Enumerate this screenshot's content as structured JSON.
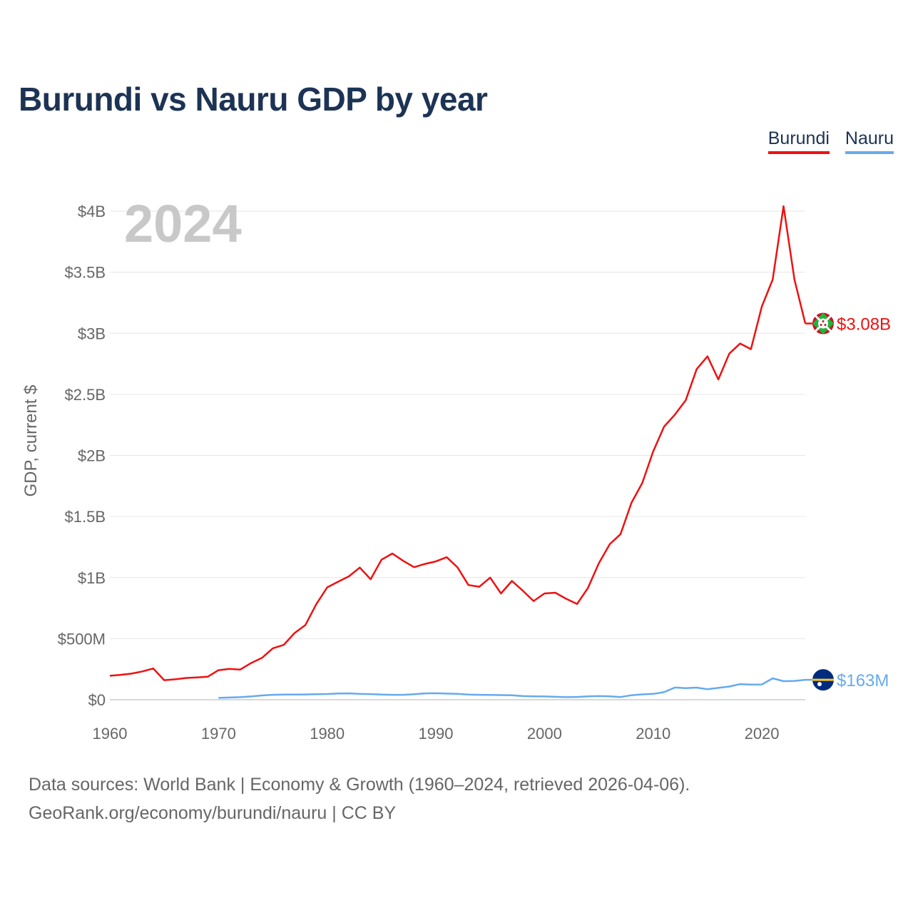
{
  "title": "Burundi vs Nauru GDP by year",
  "legend": [
    {
      "name": "Burundi",
      "color": "#ee1111"
    },
    {
      "name": "Nauru",
      "color": "#66aaee"
    }
  ],
  "footer": {
    "line1": "Data sources: World Bank | Economy & Growth (1960–2024, retrieved 2026-04-06).",
    "line2": "GeoRank.org/economy/burundi/nauru | CC BY"
  },
  "chart_data": {
    "type": "line",
    "title": "Burundi vs Nauru GDP by year",
    "year_watermark": "2024",
    "xlabel": "",
    "ylabel": "GDP, current $",
    "xlim": [
      1960,
      2024
    ],
    "ylim": [
      0,
      4000000000
    ],
    "grid": true,
    "legend_position": "top-right",
    "x_ticks": [
      1960,
      1970,
      1980,
      1990,
      2000,
      2010,
      2020
    ],
    "y_ticks": [
      {
        "value": 0,
        "label": "$0"
      },
      {
        "value": 500000000,
        "label": "$500M"
      },
      {
        "value": 1000000000,
        "label": "$1B"
      },
      {
        "value": 1500000000,
        "label": "$1.5B"
      },
      {
        "value": 2000000000,
        "label": "$2B"
      },
      {
        "value": 2500000000,
        "label": "$2.5B"
      },
      {
        "value": 3000000000,
        "label": "$3B"
      },
      {
        "value": 3500000000,
        "label": "$3.5B"
      },
      {
        "value": 4000000000,
        "label": "$4B"
      }
    ],
    "series": [
      {
        "name": "Burundi",
        "color": "#ee1111",
        "end_label": "$3.08B",
        "x": [
          1960,
          1961,
          1962,
          1963,
          1964,
          1965,
          1966,
          1967,
          1968,
          1969,
          1970,
          1971,
          1972,
          1973,
          1974,
          1975,
          1976,
          1977,
          1978,
          1979,
          1980,
          1981,
          1982,
          1983,
          1984,
          1985,
          1986,
          1987,
          1988,
          1989,
          1990,
          1991,
          1992,
          1993,
          1994,
          1995,
          1996,
          1997,
          1998,
          1999,
          2000,
          2001,
          2002,
          2003,
          2004,
          2005,
          2006,
          2007,
          2008,
          2009,
          2010,
          2011,
          2012,
          2013,
          2014,
          2015,
          2016,
          2017,
          2018,
          2019,
          2020,
          2021,
          2022,
          2023,
          2024
        ],
        "values": [
          196000000,
          204000000,
          214000000,
          232000000,
          256000000,
          160000000,
          167000000,
          178000000,
          183000000,
          188000000,
          242000000,
          252000000,
          247000000,
          300000000,
          343000000,
          421000000,
          449000000,
          546000000,
          612000000,
          783000000,
          920000000,
          966000000,
          1010000000,
          1082000000,
          986000000,
          1146000000,
          1197000000,
          1137000000,
          1085000000,
          1112000000,
          1132000000,
          1167000000,
          1083000000,
          939000000,
          925000000,
          1000000000,
          870000000,
          972000000,
          893000000,
          808000000,
          870000000,
          876000000,
          826000000,
          784000000,
          915000000,
          1117000000,
          1273000000,
          1356000000,
          1612000000,
          1775000000,
          2032000000,
          2236000000,
          2334000000,
          2452000000,
          2706000000,
          2811000000,
          2622000000,
          2833000000,
          2916000000,
          2870000000,
          3220000000,
          3440000000,
          4040000000,
          3440000000,
          3080000000
        ]
      },
      {
        "name": "Nauru",
        "color": "#66aaee",
        "end_label": "$163M",
        "x": [
          1970,
          1971,
          1972,
          1973,
          1974,
          1975,
          1976,
          1977,
          1978,
          1979,
          1980,
          1981,
          1982,
          1983,
          1984,
          1985,
          1986,
          1987,
          1988,
          1989,
          1990,
          1991,
          1992,
          1993,
          1994,
          1995,
          1996,
          1997,
          1998,
          1999,
          2000,
          2001,
          2002,
          2003,
          2004,
          2005,
          2006,
          2007,
          2008,
          2009,
          2010,
          2011,
          2012,
          2013,
          2014,
          2015,
          2016,
          2017,
          2018,
          2019,
          2020,
          2021,
          2022,
          2023,
          2024
        ],
        "values": [
          15000000,
          18000000,
          21000000,
          27000000,
          35000000,
          40000000,
          42000000,
          42000000,
          43000000,
          45000000,
          47000000,
          51000000,
          52000000,
          48000000,
          46000000,
          42000000,
          40000000,
          40000000,
          45000000,
          52000000,
          53000000,
          50000000,
          48000000,
          42000000,
          40000000,
          39000000,
          38000000,
          37000000,
          30000000,
          28000000,
          27000000,
          24000000,
          21000000,
          23000000,
          28000000,
          30000000,
          28000000,
          22000000,
          37000000,
          44000000,
          48000000,
          62000000,
          100000000,
          95000000,
          99000000,
          86000000,
          97000000,
          108000000,
          128000000,
          124000000,
          125000000,
          175000000,
          152000000,
          154000000,
          163000000
        ]
      }
    ]
  }
}
